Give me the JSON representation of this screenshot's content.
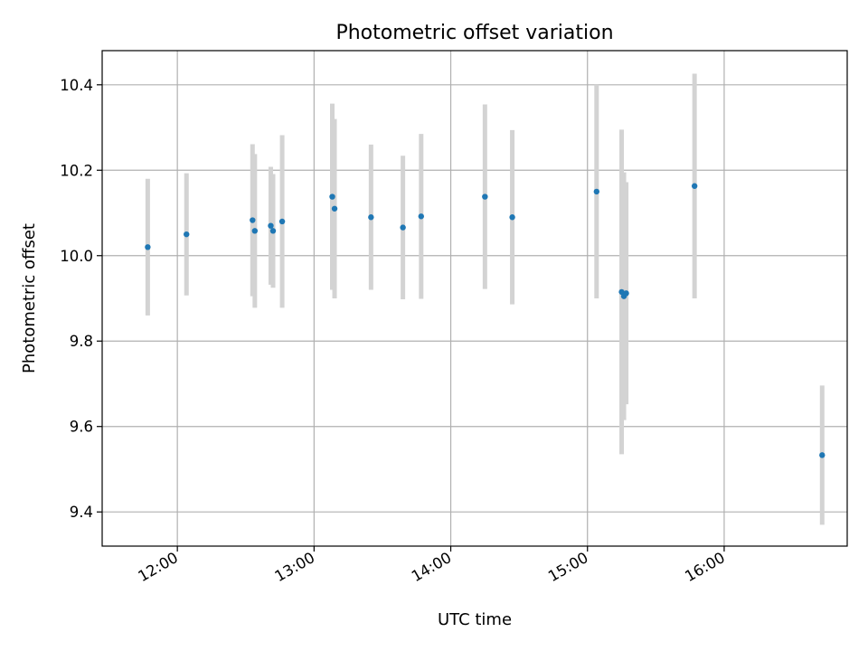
{
  "chart_data": {
    "type": "scatter",
    "title": "Photometric offset variation",
    "xlabel": "UTC time",
    "ylabel": "Photometric offset",
    "x_tick_labels": [
      "12:00",
      "13:00",
      "14:00",
      "15:00",
      "16:00"
    ],
    "y_tick_labels": [
      "9.4",
      "9.6",
      "9.8",
      "10.0",
      "10.2",
      "10.4"
    ],
    "y_ticks": [
      9.4,
      9.6,
      9.8,
      10.0,
      10.2,
      10.4
    ],
    "x_ticks": [
      "12:00",
      "13:00",
      "14:00",
      "15:00",
      "16:00"
    ],
    "xlim": [
      "11:27",
      "16:54"
    ],
    "ylim": [
      9.32,
      10.48
    ],
    "grid": true,
    "marker_color": "#1f77b4",
    "errorbar_color": "#d3d3d3",
    "points": [
      {
        "x": "11:47",
        "y": 10.02,
        "yerr": 0.16
      },
      {
        "x": "12:04",
        "y": 10.05,
        "yerr": 0.143
      },
      {
        "x": "12:33",
        "y": 10.083,
        "yerr": 0.178
      },
      {
        "x": "12:34",
        "y": 10.058,
        "yerr": 0.18
      },
      {
        "x": "12:41",
        "y": 10.07,
        "yerr": 0.138
      },
      {
        "x": "12:42",
        "y": 10.058,
        "yerr": 0.133
      },
      {
        "x": "12:46",
        "y": 10.08,
        "yerr": 0.202
      },
      {
        "x": "13:08",
        "y": 10.138,
        "yerr": 0.218
      },
      {
        "x": "13:09",
        "y": 10.11,
        "yerr": 0.21
      },
      {
        "x": "13:25",
        "y": 10.09,
        "yerr": 0.17
      },
      {
        "x": "13:39",
        "y": 10.066,
        "yerr": 0.168
      },
      {
        "x": "13:47",
        "y": 10.092,
        "yerr": 0.193
      },
      {
        "x": "14:15",
        "y": 10.138,
        "yerr": 0.216
      },
      {
        "x": "14:27",
        "y": 10.09,
        "yerr": 0.204
      },
      {
        "x": "15:04",
        "y": 10.15,
        "yerr": 0.25
      },
      {
        "x": "15:15",
        "y": 9.915,
        "yerr": 0.38
      },
      {
        "x": "15:16",
        "y": 9.905,
        "yerr": 0.29
      },
      {
        "x": "15:17",
        "y": 9.912,
        "yerr": 0.26
      },
      {
        "x": "15:47",
        "y": 10.163,
        "yerr": 0.263
      },
      {
        "x": "16:43",
        "y": 9.533,
        "yerr": 0.163
      }
    ]
  }
}
